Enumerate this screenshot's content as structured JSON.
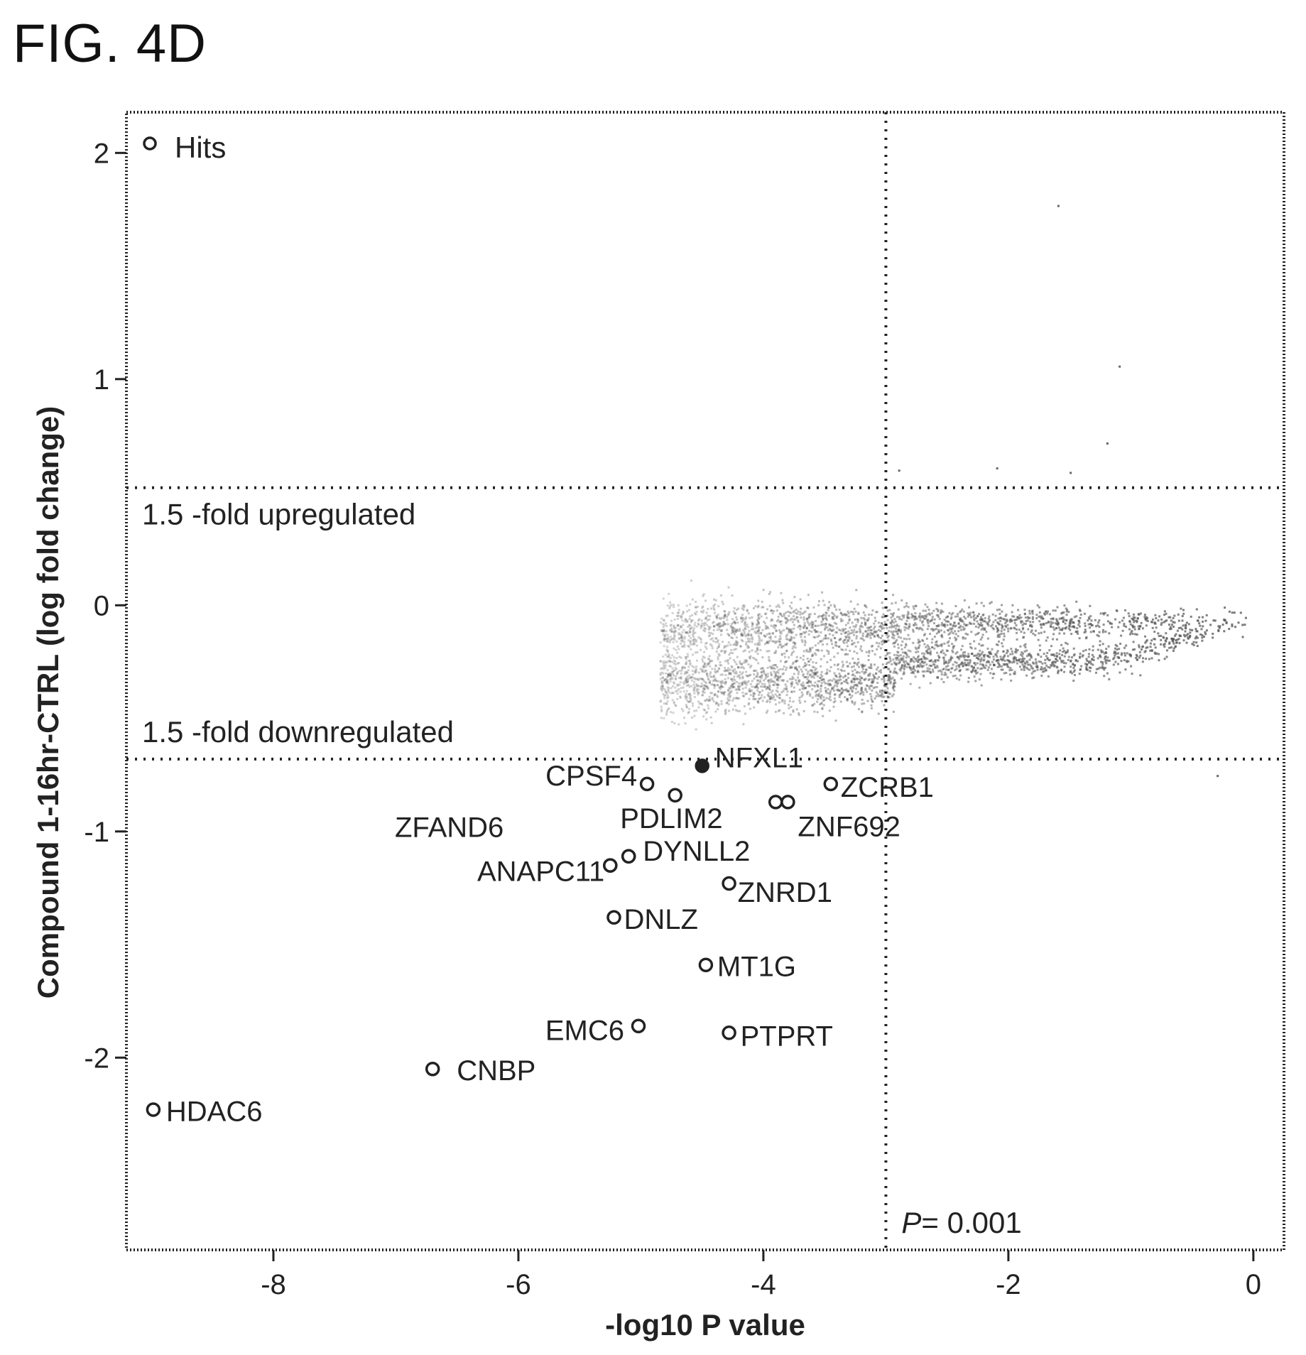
{
  "figure_label": "FIG. 4D",
  "chart_data": {
    "type": "scatter",
    "title": "",
    "xlabel": "-log10 P value",
    "ylabel": "Compound 1-16hr-CTRL (log fold change)",
    "xlim": [
      -9.2,
      0.25
    ],
    "ylim": [
      -2.85,
      2.18
    ],
    "x_ticks": [
      -8,
      -6,
      -4,
      -2,
      0
    ],
    "y_ticks": [
      -2,
      -1,
      0,
      1,
      2
    ],
    "x_tick_labels": [
      "-8",
      "-6",
      "-4",
      "-2",
      "0"
    ],
    "y_tick_labels": [
      "-2",
      "-1",
      "0",
      "1",
      "2"
    ],
    "grid": false,
    "legend": {
      "placement": "top-left",
      "entries": [
        "Hits"
      ]
    },
    "reference_lines": {
      "upregulated": {
        "y": 0.52,
        "label": "1.5 -fold upregulated"
      },
      "downregulated": {
        "y": -0.68,
        "label": "1.5 -fold downregulated"
      },
      "significance": {
        "x": -3.0,
        "label_prefix": "P",
        "label_value": "= 0.001"
      }
    },
    "hits": [
      {
        "name": "NFXL1",
        "x": -4.5,
        "y": -0.71,
        "filled": true
      },
      {
        "name": "CPSF4",
        "x": -4.95,
        "y": -0.79,
        "filled": false
      },
      {
        "name": "",
        "x": -4.72,
        "y": -0.84,
        "filled": false
      },
      {
        "name": "ZCRB1",
        "x": -3.45,
        "y": -0.79,
        "filled": false
      },
      {
        "name": "",
        "x": -3.9,
        "y": -0.87,
        "filled": false
      },
      {
        "name": "ZNF692",
        "x": -3.8,
        "y": -0.87,
        "filled": false
      },
      {
        "name": "ZFAND6",
        "x": -5.25,
        "y": -1.15,
        "filled": false
      },
      {
        "name": "PDLIM2",
        "x": -5.1,
        "y": -1.11,
        "filled": false
      },
      {
        "name": "ANAPC11",
        "x": -5.25,
        "y": -1.15,
        "filled": false
      },
      {
        "name": "DYNLL2",
        "x": -5.1,
        "y": -1.11,
        "filled": false
      },
      {
        "name": "ZNRD1",
        "x": -4.28,
        "y": -1.23,
        "filled": false
      },
      {
        "name": "DNLZ",
        "x": -5.22,
        "y": -1.38,
        "filled": false
      },
      {
        "name": "MT1G",
        "x": -4.47,
        "y": -1.59,
        "filled": false
      },
      {
        "name": "EMC6",
        "x": -5.02,
        "y": -1.86,
        "filled": false
      },
      {
        "name": "PTPRT",
        "x": -4.28,
        "y": -1.89,
        "filled": false
      },
      {
        "name": "CNBP",
        "x": -6.7,
        "y": -2.05,
        "filled": false
      },
      {
        "name": "HDAC6",
        "x": -8.98,
        "y": -2.23,
        "filled": false
      }
    ],
    "background_points": "dense cloud of non-hit proteins between x -5 and 0, y -0.75 to 0.6, concentrated near x -1 to 0, y -0.3 to 0.1"
  },
  "colors": {
    "ink": "#222222",
    "background_points": "#555555"
  }
}
